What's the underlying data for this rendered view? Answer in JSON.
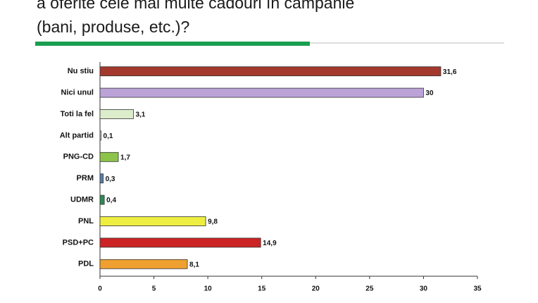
{
  "chart_data": {
    "type": "bar",
    "orientation": "horizontal",
    "title": [
      "a oferite cele mai multe cadouri în campanie",
      "(bani, produse, etc.)?"
    ],
    "categories": [
      "Nu stiu",
      "Nici unul",
      "Toti la fel",
      "Alt partid",
      "PNG-CD",
      "PRM",
      "UDMR",
      "PNL",
      "PSD+PC",
      "PDL"
    ],
    "values": [
      31.6,
      30,
      3.1,
      0.1,
      1.7,
      0.3,
      0.4,
      9.8,
      14.9,
      8.1
    ],
    "value_labels": [
      "31,6",
      "30",
      "3,1",
      "0,1",
      "1,7",
      "0,3",
      "0,4",
      "9,8",
      "14,9",
      "8,1"
    ],
    "colors": [
      "#a3382c",
      "#bba3d8",
      "#dcedcc",
      "#dde8dd",
      "#8cc34a",
      "#5b7fa8",
      "#2e8b57",
      "#eeee40",
      "#cc2424",
      "#f0a030"
    ],
    "xlim": [
      0,
      35
    ],
    "xticks": [
      0,
      5,
      10,
      15,
      20,
      25,
      30,
      35
    ],
    "grid": false
  }
}
